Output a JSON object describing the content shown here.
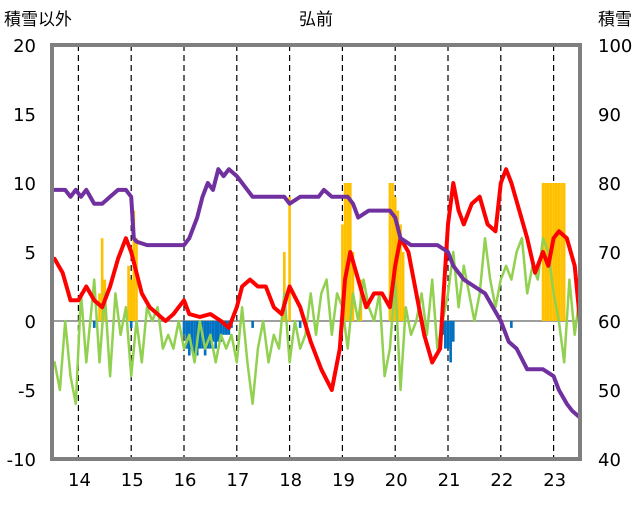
{
  "chart_data": {
    "type": "line",
    "title": "弘前",
    "ylabel_left": "積雪以外",
    "ylabel_right": "積雪",
    "x_categories": [
      "14",
      "15",
      "16",
      "17",
      "18",
      "19",
      "20",
      "21",
      "22",
      "23"
    ],
    "xlim": [
      13.5,
      23.5
    ],
    "ylim_left": [
      -10,
      20
    ],
    "ylim_right": [
      40,
      100
    ],
    "yticks_left": [
      "20",
      "15",
      "10",
      "5",
      "0",
      "-5",
      "-10"
    ],
    "yticks_right": [
      "100",
      "90",
      "80",
      "70",
      "60",
      "50",
      "40"
    ],
    "grid": "vertical dashed at day boundaries",
    "colors": {
      "red": "#ff0000",
      "purple": "#7030a0",
      "green": "#92d050",
      "orange": "#ffc000",
      "blue": "#0070c0",
      "frame": "#7f7f7f"
    },
    "series": [
      {
        "color": "red",
        "axis": "left",
        "x": [
          13.55,
          13.7,
          13.85,
          14.0,
          14.15,
          14.3,
          14.45,
          14.6,
          14.75,
          14.9,
          15.0,
          15.1,
          15.2,
          15.35,
          15.5,
          15.65,
          15.8,
          15.9,
          16.0,
          16.1,
          16.3,
          16.5,
          16.7,
          16.85,
          17.0,
          17.1,
          17.25,
          17.4,
          17.55,
          17.7,
          17.85,
          18.0,
          18.2,
          18.4,
          18.6,
          18.8,
          18.95,
          19.05,
          19.15,
          19.3,
          19.45,
          19.6,
          19.75,
          19.9,
          20.0,
          20.1,
          20.25,
          20.4,
          20.55,
          20.7,
          20.85,
          21.0,
          21.1,
          21.2,
          21.3,
          21.45,
          21.6,
          21.75,
          21.9,
          22.0,
          22.1,
          22.2,
          22.35,
          22.5,
          22.65,
          22.8,
          22.9,
          23.0,
          23.1,
          23.25,
          23.4,
          23.5
        ],
        "y": [
          4.5,
          3.5,
          1.5,
          1.5,
          2.5,
          1.5,
          1,
          2.5,
          4.5,
          6,
          5,
          3.5,
          2,
          1,
          0.5,
          0,
          0.5,
          1,
          1.5,
          0.5,
          0.3,
          0.5,
          0,
          -0.5,
          1,
          2.5,
          3,
          2.5,
          2.5,
          1,
          0.5,
          2.5,
          1,
          -1.5,
          -3.5,
          -5,
          -2,
          3,
          5,
          3,
          1,
          2,
          2,
          1,
          4,
          6,
          5,
          2,
          -1,
          -3,
          -2,
          7,
          10,
          8,
          7,
          8.5,
          9,
          7,
          6.5,
          10,
          11,
          10,
          8,
          6,
          3.5,
          5,
          4,
          6,
          6.5,
          6,
          4,
          0
        ]
      },
      {
        "color": "purple",
        "axis": "right",
        "x": [
          13.55,
          13.75,
          13.85,
          13.95,
          14.05,
          14.15,
          14.3,
          14.45,
          14.6,
          14.75,
          14.9,
          15.0,
          15.05,
          15.1,
          15.3,
          15.6,
          15.9,
          16.0,
          16.1,
          16.25,
          16.35,
          16.45,
          16.55,
          16.65,
          16.75,
          16.85,
          17.0,
          17.1,
          17.3,
          17.6,
          17.9,
          18.0,
          18.2,
          18.4,
          18.55,
          18.65,
          18.8,
          18.95,
          19.1,
          19.2,
          19.3,
          19.5,
          19.7,
          19.9,
          20.0,
          20.1,
          20.3,
          20.6,
          20.8,
          21.0,
          21.1,
          21.3,
          21.5,
          21.7,
          21.85,
          22.0,
          22.15,
          22.3,
          22.5,
          22.7,
          22.8,
          23.0,
          23.1,
          23.25,
          23.35,
          23.5
        ],
        "y": [
          79,
          79,
          78,
          79,
          78,
          79,
          77,
          77,
          78,
          79,
          79,
          78,
          72,
          71.5,
          71,
          71,
          71,
          71,
          72,
          75,
          78,
          80,
          79,
          82,
          81,
          82,
          81,
          80,
          78,
          78,
          78,
          77,
          78,
          78,
          78,
          79,
          78,
          78,
          78,
          77,
          75,
          76,
          76,
          76,
          75,
          72,
          71,
          71,
          71,
          70,
          68,
          66,
          65,
          64,
          62,
          60,
          57,
          56,
          53,
          53,
          53,
          52,
          50,
          48,
          47,
          46
        ]
      },
      {
        "color": "green",
        "axis": "left",
        "x": [
          13.55,
          13.65,
          13.75,
          13.85,
          13.95,
          14.05,
          14.15,
          14.25,
          14.3,
          14.4,
          14.5,
          14.6,
          14.7,
          14.8,
          14.9,
          15.0,
          15.1,
          15.2,
          15.3,
          15.4,
          15.5,
          15.6,
          15.7,
          15.8,
          15.9,
          16.0,
          16.1,
          16.2,
          16.3,
          16.4,
          16.5,
          16.6,
          16.7,
          16.8,
          16.9,
          17.0,
          17.1,
          17.2,
          17.3,
          17.4,
          17.5,
          17.6,
          17.7,
          17.8,
          17.9,
          18.0,
          18.1,
          18.2,
          18.3,
          18.4,
          18.5,
          18.6,
          18.7,
          18.8,
          18.9,
          19.0,
          19.1,
          19.2,
          19.3,
          19.4,
          19.5,
          19.6,
          19.7,
          19.8,
          19.9,
          20.0,
          20.1,
          20.2,
          20.3,
          20.4,
          20.5,
          20.6,
          20.7,
          20.8,
          20.9,
          21.0,
          21.1,
          21.2,
          21.3,
          21.4,
          21.5,
          21.6,
          21.7,
          21.8,
          21.9,
          22.0,
          22.1,
          22.2,
          22.3,
          22.4,
          22.5,
          22.6,
          22.7,
          22.8,
          22.9,
          23.0,
          23.1,
          23.2,
          23.3,
          23.4,
          23.5
        ],
        "y": [
          -3,
          -5,
          0,
          -4,
          -6,
          2,
          -3,
          1,
          3,
          -3,
          2,
          -4,
          2,
          -1,
          1,
          -4,
          0,
          -3,
          1,
          0,
          1,
          -2,
          -1,
          -2,
          0,
          -2,
          -1,
          -3,
          0,
          -2,
          -1,
          -3,
          -1,
          -2,
          -1,
          -3,
          1,
          -3,
          -6,
          -2,
          0,
          -3,
          -1,
          -2,
          2,
          -3,
          0,
          -2,
          -1,
          2,
          -1,
          2,
          3,
          -1,
          2,
          1,
          -2,
          2,
          0,
          3,
          1,
          0,
          2,
          -4,
          -2,
          3,
          -5,
          1,
          -1,
          0,
          2,
          -1,
          3,
          -2,
          0,
          2,
          5,
          1,
          4,
          2,
          0,
          2,
          6,
          3,
          1,
          3,
          4,
          3,
          5,
          6,
          2,
          4,
          3,
          6,
          5,
          2,
          0,
          -3,
          3,
          -1,
          2
        ]
      },
      {
        "color": "orange",
        "axis": "left",
        "kind": "bar",
        "x": [
          14.4,
          14.45,
          14.5,
          14.95,
          15.0,
          15.05,
          15.1,
          17.9,
          18.0,
          19.0,
          19.05,
          19.1,
          19.15,
          19.2,
          19.35,
          19.9,
          19.95,
          20.0,
          20.05,
          20.1,
          20.15,
          22.8,
          22.85,
          22.9,
          22.95,
          23.0,
          23.05,
          23.1,
          23.15,
          23.2
        ],
        "y": [
          2,
          6,
          3,
          4,
          3,
          8,
          6,
          5,
          9,
          7,
          10,
          10,
          10,
          5,
          3,
          10,
          10,
          9,
          8,
          7,
          5,
          10,
          10,
          10,
          10,
          10,
          10,
          10,
          10,
          10
        ]
      },
      {
        "color": "blue",
        "axis": "left",
        "kind": "bar",
        "x": [
          14.3,
          15.0,
          16.0,
          16.05,
          16.1,
          16.15,
          16.2,
          16.25,
          16.3,
          16.35,
          16.4,
          16.45,
          16.5,
          16.55,
          16.6,
          16.65,
          16.7,
          16.75,
          16.8,
          16.85,
          16.9,
          17.3,
          18.2,
          20.9,
          20.95,
          21.0,
          21.05,
          21.1,
          22.2
        ],
        "y": [
          -0.5,
          -0.5,
          -1,
          -2,
          -2.5,
          -2,
          -2.5,
          -2.5,
          -2,
          -2,
          -2.5,
          -2,
          -2,
          -1.5,
          -2,
          -1.5,
          -1.5,
          -1,
          -1,
          -1,
          -0.5,
          -0.5,
          -0.5,
          -1,
          -2,
          -2,
          -3,
          -1.5,
          -0.5
        ]
      }
    ]
  }
}
